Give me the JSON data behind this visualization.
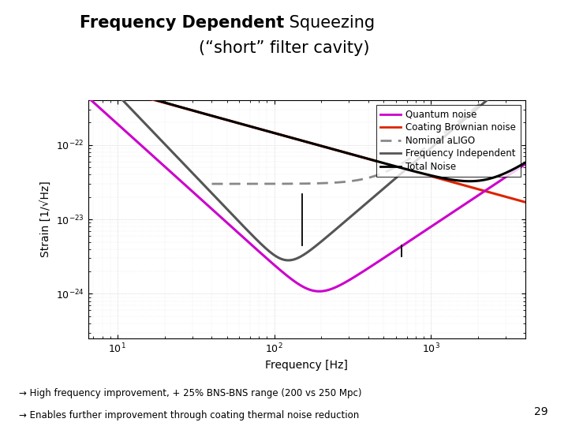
{
  "title_bold": "Frequency Dependent",
  "title_regular": " Squeezing",
  "title_line2": "(“short” filter cavity)",
  "xlabel": "Frequency [Hz]",
  "ylabel": "Strain [1/√Hz]",
  "xlim": [
    6.5,
    4000
  ],
  "ylim": [
    2.5e-25,
    4e-22
  ],
  "legend_entries": [
    "Quantum noise",
    "Coating Brownian noise",
    "Nominal aLIGO",
    "Frequency Independent",
    "Total Noise"
  ],
  "legend_colors": [
    "#cc00cc",
    "#dd2200",
    "#888888",
    "#555555",
    "#000000"
  ],
  "annotation_text1": "→ High frequency improvement, + 25% BNS-BNS range (200 vs 250 Mpc)",
  "annotation_text2": "→ Enables further improvement through coating thermal noise reduction",
  "annotation_bg": "#c8c8dc",
  "page_number": "29",
  "bg_color": "#ffffff"
}
